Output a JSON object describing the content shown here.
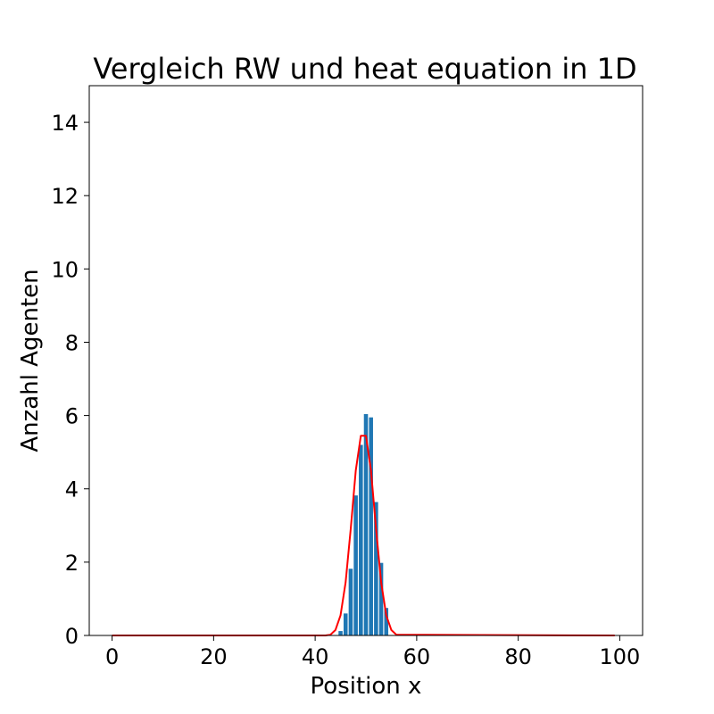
{
  "chart_data": {
    "type": "bar",
    "title": "Vergleich RW und heat equation in 1D",
    "xlabel": "Position x",
    "ylabel": "Anzahl Agenten",
    "xlim": [
      -4.5,
      104.5
    ],
    "ylim": [
      0,
      15
    ],
    "xticks": [
      0,
      20,
      40,
      60,
      80,
      100
    ],
    "yticks": [
      0,
      2,
      4,
      6,
      8,
      10,
      12,
      14
    ],
    "grid": false,
    "bar_color": "#1f77b4",
    "line_color": "#ff0000",
    "series": [
      {
        "kind": "bar",
        "x": [
          45,
          46,
          47,
          48,
          49,
          50,
          51,
          52,
          53,
          54
        ],
        "values": [
          0.12,
          0.6,
          1.82,
          3.82,
          5.2,
          6.04,
          5.95,
          3.64,
          1.98,
          0.75
        ]
      },
      {
        "kind": "line",
        "x": [
          0,
          42,
          43,
          44,
          45,
          46,
          47,
          48,
          49,
          50,
          51,
          52,
          53,
          54,
          55,
          56,
          99
        ],
        "values": [
          0,
          0,
          0.02,
          0.15,
          0.55,
          1.45,
          2.9,
          4.5,
          5.45,
          5.45,
          4.5,
          2.9,
          1.45,
          0.55,
          0.15,
          0.02,
          0
        ]
      }
    ]
  }
}
